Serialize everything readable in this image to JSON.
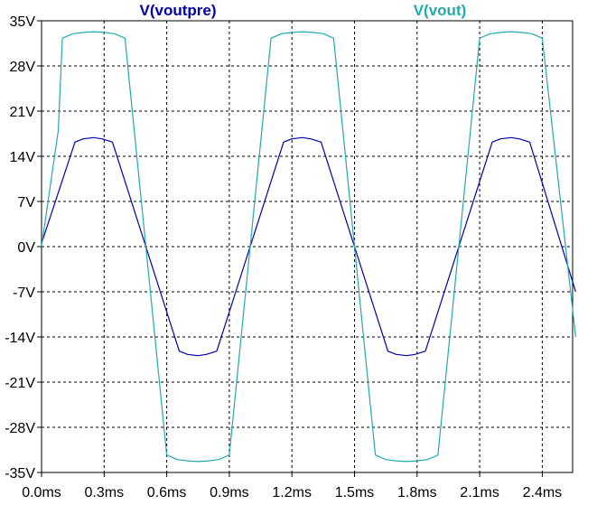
{
  "chart_data": {
    "type": "line",
    "title": "",
    "xlabel": "",
    "ylabel": "",
    "xlim": [
      0.0,
      2.56
    ],
    "ylim": [
      -35,
      35
    ],
    "grid": true,
    "x_ticks": [
      0.0,
      0.3,
      0.6,
      0.9,
      1.2,
      1.5,
      1.8,
      2.1,
      2.4
    ],
    "x_tick_labels": [
      "0.0ms",
      "0.3ms",
      "0.6ms",
      "0.9ms",
      "1.2ms",
      "1.5ms",
      "1.8ms",
      "2.1ms",
      "2.4ms"
    ],
    "y_ticks": [
      35,
      28,
      21,
      14,
      7,
      0,
      -7,
      -14,
      -21,
      -28,
      -35
    ],
    "y_tick_labels": [
      "35V",
      "28V",
      "21V",
      "14V",
      "7V",
      "0V",
      "-7V",
      "-14V",
      "-21V",
      "-28V",
      "-35V"
    ],
    "legend_position": "top",
    "series": [
      {
        "name": "V(voutpre)",
        "color": "#0000aa",
        "x": [
          0.0,
          0.16,
          0.2,
          0.25,
          0.29,
          0.34,
          0.66,
          0.7,
          0.75,
          0.79,
          0.84,
          1.16,
          1.2,
          1.25,
          1.29,
          1.34,
          1.66,
          1.7,
          1.75,
          1.79,
          1.84,
          2.16,
          2.2,
          2.25,
          2.29,
          2.34,
          2.56
        ],
        "y": [
          0.5,
          16.2,
          16.7,
          16.9,
          16.7,
          16.2,
          -16.2,
          -16.7,
          -16.9,
          -16.7,
          -16.2,
          16.2,
          16.7,
          16.9,
          16.7,
          16.2,
          -16.2,
          -16.7,
          -16.9,
          -16.7,
          -16.2,
          16.2,
          16.7,
          16.9,
          16.7,
          16.2,
          -7.0
        ]
      },
      {
        "name": "V(vout)",
        "color": "#20aab0",
        "x": [
          0.0,
          0.08,
          0.1,
          0.15,
          0.2,
          0.25,
          0.3,
          0.35,
          0.4,
          0.6,
          0.65,
          0.7,
          0.75,
          0.8,
          0.85,
          0.9,
          1.1,
          1.15,
          1.2,
          1.25,
          1.3,
          1.35,
          1.4,
          1.6,
          1.65,
          1.7,
          1.75,
          1.8,
          1.85,
          1.9,
          2.1,
          2.15,
          2.2,
          2.25,
          2.3,
          2.35,
          2.4,
          2.56
        ],
        "y": [
          0.0,
          18.0,
          32.3,
          33.0,
          33.2,
          33.3,
          33.2,
          33.0,
          32.3,
          -32.3,
          -33.0,
          -33.2,
          -33.3,
          -33.2,
          -33.0,
          -32.3,
          32.3,
          33.0,
          33.2,
          33.3,
          33.2,
          33.0,
          32.3,
          -32.3,
          -33.0,
          -33.2,
          -33.3,
          -33.2,
          -33.0,
          -32.3,
          32.3,
          33.0,
          33.2,
          33.3,
          33.2,
          33.0,
          32.3,
          -14.0
        ]
      }
    ]
  }
}
